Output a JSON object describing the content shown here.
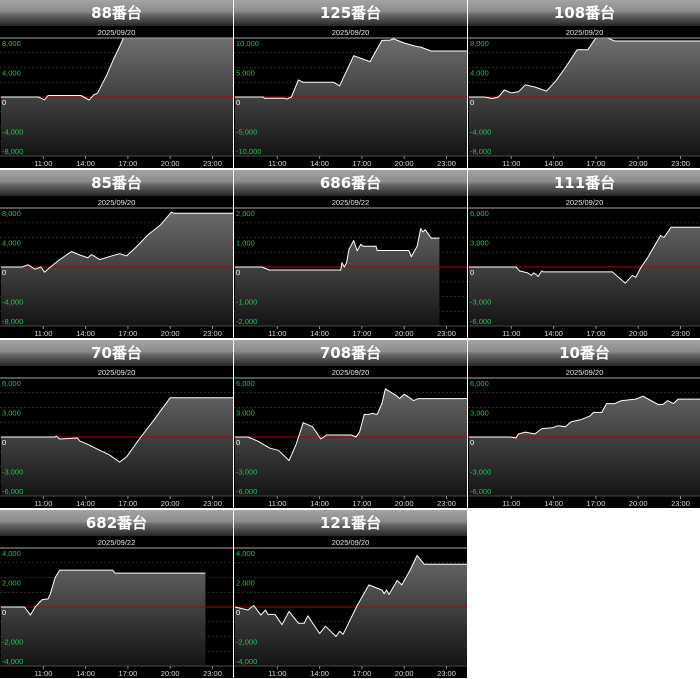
{
  "colors": {
    "line": "#ffffff",
    "zero_line": "#b40000",
    "y_label": "#1ec850",
    "zero_label": "#ffffff",
    "fill_top": "#6e6e6e",
    "fill_bottom": "#141414",
    "background": "#000000"
  },
  "x_axis": {
    "range": [
      "08:00",
      "24:30"
    ],
    "ticks": [
      "11:00",
      "14:00",
      "17:00",
      "20:00",
      "23:00"
    ]
  },
  "chart_data": [
    {
      "type": "area",
      "title": "88番台",
      "date": "2025/09/20",
      "ylim": [
        -8000,
        8000
      ],
      "y_ticks": [
        "8,000",
        "4,000",
        "0",
        "-4,000",
        "-8,000"
      ],
      "points": [
        [
          "08:00",
          0
        ],
        [
          "10:40",
          0
        ],
        [
          "11:05",
          -400
        ],
        [
          "11:20",
          200
        ],
        [
          "13:40",
          200
        ],
        [
          "14:15",
          -400
        ],
        [
          "14:35",
          300
        ],
        [
          "14:50",
          500
        ],
        [
          "15:30",
          3000
        ],
        [
          "16:00",
          5200
        ],
        [
          "16:30",
          7200
        ],
        [
          "16:40",
          8000
        ],
        [
          "24:30",
          8000
        ]
      ]
    },
    {
      "type": "area",
      "title": "125番台",
      "date": "2025/09/20",
      "ylim": [
        -10000,
        10000
      ],
      "y_ticks": [
        "10,000",
        "5,000",
        "0",
        "-5,000",
        "-10,000"
      ],
      "points": [
        [
          "08:00",
          0
        ],
        [
          "10:00",
          0
        ],
        [
          "10:05",
          -200
        ],
        [
          "11:30",
          -200
        ],
        [
          "11:40",
          -350
        ],
        [
          "12:00",
          0
        ],
        [
          "12:30",
          2900
        ],
        [
          "12:50",
          2500
        ],
        [
          "15:00",
          2500
        ],
        [
          "15:25",
          1900
        ],
        [
          "16:25",
          7000
        ],
        [
          "17:35",
          6000
        ],
        [
          "17:50",
          7100
        ],
        [
          "18:25",
          9600
        ],
        [
          "19:00",
          9650
        ],
        [
          "19:15",
          9850
        ],
        [
          "20:00",
          9150
        ],
        [
          "20:50",
          8600
        ],
        [
          "21:10",
          8450
        ],
        [
          "21:55",
          7800
        ],
        [
          "24:30",
          7800
        ]
      ]
    },
    {
      "type": "area",
      "title": "108番台",
      "date": "2025/09/20",
      "ylim": [
        -8000,
        8000
      ],
      "y_ticks": [
        "8,000",
        "4,000",
        "0",
        "-4,000",
        "-8,000"
      ],
      "points": [
        [
          "08:00",
          0
        ],
        [
          "09:05",
          0
        ],
        [
          "09:40",
          -200
        ],
        [
          "10:05",
          0
        ],
        [
          "10:30",
          950
        ],
        [
          "11:00",
          550
        ],
        [
          "11:30",
          700
        ],
        [
          "12:00",
          1650
        ],
        [
          "12:40",
          1350
        ],
        [
          "13:30",
          800
        ],
        [
          "14:10",
          2200
        ],
        [
          "14:50",
          4000
        ],
        [
          "15:40",
          6400
        ],
        [
          "16:25",
          6400
        ],
        [
          "17:00",
          8000
        ],
        [
          "17:50",
          8000
        ],
        [
          "18:20",
          7600
        ],
        [
          "24:30",
          7600
        ]
      ]
    },
    {
      "type": "area",
      "title": "85番台",
      "date": "2025/09/20",
      "ylim": [
        -8000,
        8000
      ],
      "y_ticks": [
        "8,000",
        "4,000",
        "0",
        "-4,000",
        "-8,000"
      ],
      "points": [
        [
          "08:00",
          0
        ],
        [
          "09:30",
          0
        ],
        [
          "09:55",
          300
        ],
        [
          "10:25",
          -300
        ],
        [
          "10:50",
          0
        ],
        [
          "11:05",
          -700
        ],
        [
          "11:30",
          0
        ],
        [
          "12:10",
          1000
        ],
        [
          "13:00",
          2100
        ],
        [
          "13:30",
          1700
        ],
        [
          "14:10",
          1250
        ],
        [
          "14:25",
          1700
        ],
        [
          "15:00",
          1000
        ],
        [
          "15:40",
          1400
        ],
        [
          "16:25",
          1800
        ],
        [
          "16:55",
          1500
        ],
        [
          "17:35",
          2700
        ],
        [
          "18:25",
          4350
        ],
        [
          "19:20",
          5750
        ],
        [
          "20:05",
          7450
        ],
        [
          "20:15",
          7300
        ],
        [
          "24:30",
          7300
        ]
      ]
    },
    {
      "type": "area",
      "title": "686番台",
      "date": "2025/09/22",
      "ylim": [
        -2000,
        2000
      ],
      "y_ticks": [
        "2,000",
        "1,000",
        "0",
        "-1,000",
        "-2,000"
      ],
      "points": [
        [
          "08:00",
          0
        ],
        [
          "09:55",
          0
        ],
        [
          "10:25",
          -100
        ],
        [
          "15:30",
          -100
        ],
        [
          "15:35",
          150
        ],
        [
          "15:45",
          0
        ],
        [
          "15:55",
          150
        ],
        [
          "16:05",
          600
        ],
        [
          "16:25",
          900
        ],
        [
          "16:40",
          550
        ],
        [
          "16:55",
          770
        ],
        [
          "17:05",
          700
        ],
        [
          "18:00",
          700
        ],
        [
          "18:05",
          560
        ],
        [
          "20:20",
          560
        ],
        [
          "20:30",
          350
        ],
        [
          "20:55",
          700
        ],
        [
          "21:10",
          1300
        ],
        [
          "21:20",
          1190
        ],
        [
          "21:30",
          1260
        ],
        [
          "21:55",
          980
        ],
        [
          "22:30",
          980
        ]
      ]
    },
    {
      "type": "area",
      "title": "111番台",
      "date": "2025/09/20",
      "ylim": [
        -6000,
        6000
      ],
      "y_ticks": [
        "6,000",
        "3,000",
        "0",
        "-3,000",
        "-6,000"
      ],
      "points": [
        [
          "08:00",
          0
        ],
        [
          "11:20",
          0
        ],
        [
          "11:35",
          -400
        ],
        [
          "12:10",
          -600
        ],
        [
          "12:25",
          -850
        ],
        [
          "12:35",
          -600
        ],
        [
          "12:55",
          -950
        ],
        [
          "13:10",
          -400
        ],
        [
          "13:15",
          -500
        ],
        [
          "18:10",
          -500
        ],
        [
          "19:05",
          -1650
        ],
        [
          "19:35",
          -850
        ],
        [
          "19:50",
          -1050
        ],
        [
          "20:10",
          -100
        ],
        [
          "20:40",
          950
        ],
        [
          "21:25",
          2800
        ],
        [
          "21:35",
          3200
        ],
        [
          "21:50",
          3000
        ],
        [
          "22:20",
          4050
        ],
        [
          "24:30",
          4050
        ]
      ]
    },
    {
      "type": "area",
      "title": "70番台",
      "date": "2025/09/20",
      "ylim": [
        -6000,
        6000
      ],
      "y_ticks": [
        "6,000",
        "3,000",
        "0",
        "-3,000",
        "-6,000"
      ],
      "points": [
        [
          "08:00",
          0
        ],
        [
          "11:50",
          0
        ],
        [
          "11:55",
          100
        ],
        [
          "12:10",
          -200
        ],
        [
          "13:25",
          -100
        ],
        [
          "13:35",
          -400
        ],
        [
          "14:10",
          -750
        ],
        [
          "15:00",
          -1350
        ],
        [
          "15:40",
          -1800
        ],
        [
          "16:25",
          -2550
        ],
        [
          "16:55",
          -2000
        ],
        [
          "17:55",
          0
        ],
        [
          "18:50",
          1700
        ],
        [
          "20:00",
          4000
        ],
        [
          "24:30",
          4000
        ]
      ]
    },
    {
      "type": "area",
      "title": "708番台",
      "date": "2025/09/20",
      "ylim": [
        -6000,
        6000
      ],
      "y_ticks": [
        "6,000",
        "3,000",
        "0",
        "-3,000",
        "-6,000"
      ],
      "points": [
        [
          "08:00",
          0
        ],
        [
          "08:55",
          0
        ],
        [
          "09:35",
          -400
        ],
        [
          "10:30",
          -1150
        ],
        [
          "11:05",
          -1350
        ],
        [
          "11:50",
          -2400
        ],
        [
          "12:20",
          -750
        ],
        [
          "12:50",
          1450
        ],
        [
          "13:30",
          1050
        ],
        [
          "14:05",
          -200
        ],
        [
          "14:30",
          200
        ],
        [
          "16:15",
          200
        ],
        [
          "16:35",
          0
        ],
        [
          "16:50",
          500
        ],
        [
          "17:10",
          2300
        ],
        [
          "17:30",
          2300
        ],
        [
          "17:40",
          2400
        ],
        [
          "18:05",
          2300
        ],
        [
          "18:25",
          3400
        ],
        [
          "18:40",
          4900
        ],
        [
          "19:30",
          4150
        ],
        [
          "19:40",
          3900
        ],
        [
          "20:00",
          4350
        ],
        [
          "20:40",
          3700
        ],
        [
          "21:00",
          3900
        ],
        [
          "24:30",
          3900
        ]
      ]
    },
    {
      "type": "area",
      "title": "10番台",
      "date": "2025/09/20",
      "ylim": [
        -6000,
        6000
      ],
      "y_ticks": [
        "6,000",
        "3,000",
        "0",
        "-3,000",
        "-6,000"
      ],
      "points": [
        [
          "08:00",
          0
        ],
        [
          "10:55",
          0
        ],
        [
          "11:20",
          -100
        ],
        [
          "11:30",
          300
        ],
        [
          "12:00",
          500
        ],
        [
          "12:40",
          300
        ],
        [
          "13:10",
          850
        ],
        [
          "13:55",
          950
        ],
        [
          "14:20",
          1150
        ],
        [
          "14:50",
          1050
        ],
        [
          "15:15",
          1550
        ],
        [
          "15:55",
          1750
        ],
        [
          "16:35",
          2150
        ],
        [
          "16:50",
          2500
        ],
        [
          "17:25",
          2500
        ],
        [
          "17:45",
          3400
        ],
        [
          "18:20",
          3400
        ],
        [
          "18:50",
          3700
        ],
        [
          "19:50",
          3850
        ],
        [
          "20:20",
          4150
        ],
        [
          "21:25",
          3300
        ],
        [
          "21:45",
          3300
        ],
        [
          "22:05",
          3700
        ],
        [
          "22:30",
          3400
        ],
        [
          "22:50",
          3850
        ],
        [
          "24:30",
          3850
        ]
      ]
    },
    {
      "type": "area",
      "title": "682番台",
      "date": "2025/09/22",
      "ylim": [
        -4000,
        4000
      ],
      "y_ticks": [
        "4,000",
        "2,000",
        "0",
        "-2,000",
        "-4,000"
      ],
      "points": [
        [
          "08:00",
          0
        ],
        [
          "09:40",
          0
        ],
        [
          "10:05",
          -550
        ],
        [
          "10:25",
          0
        ],
        [
          "10:55",
          500
        ],
        [
          "11:20",
          550
        ],
        [
          "11:30",
          900
        ],
        [
          "11:50",
          2000
        ],
        [
          "12:10",
          2500
        ],
        [
          "15:55",
          2500
        ],
        [
          "16:05",
          2300
        ],
        [
          "22:30",
          2300
        ]
      ]
    },
    {
      "type": "area",
      "title": "121番台",
      "date": "2025/09/20",
      "ylim": [
        -4000,
        4000
      ],
      "y_ticks": [
        "4,000",
        "2,000",
        "0",
        "-2,000",
        "-4,000"
      ],
      "points": [
        [
          "08:00",
          0
        ],
        [
          "08:55",
          -200
        ],
        [
          "09:20",
          100
        ],
        [
          "09:50",
          -550
        ],
        [
          "10:10",
          -200
        ],
        [
          "10:20",
          -500
        ],
        [
          "10:50",
          -500
        ],
        [
          "11:20",
          -1200
        ],
        [
          "11:50",
          -300
        ],
        [
          "12:30",
          -1100
        ],
        [
          "12:55",
          -1100
        ],
        [
          "13:10",
          -600
        ],
        [
          "14:00",
          -1800
        ],
        [
          "14:25",
          -1300
        ],
        [
          "15:10",
          -2000
        ],
        [
          "15:25",
          -1650
        ],
        [
          "15:40",
          -1850
        ],
        [
          "16:40",
          100
        ],
        [
          "17:30",
          1500
        ],
        [
          "18:25",
          1150
        ],
        [
          "18:35",
          900
        ],
        [
          "18:45",
          1150
        ],
        [
          "18:55",
          850
        ],
        [
          "19:30",
          1800
        ],
        [
          "19:50",
          1500
        ],
        [
          "20:25",
          2500
        ],
        [
          "20:55",
          3500
        ],
        [
          "21:25",
          2900
        ],
        [
          "24:30",
          2900
        ]
      ]
    }
  ]
}
